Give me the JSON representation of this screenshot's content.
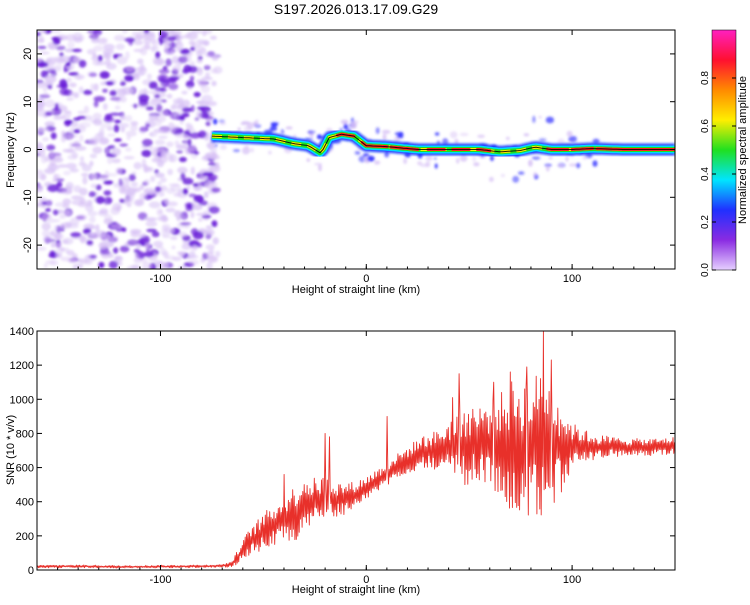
{
  "title": "S197.2026.013.17.09.G29",
  "colors": {
    "axis": "#000000",
    "snr_line": "#e8302a",
    "ridge": "#ff2020",
    "ridge_halo_green": "#20e020",
    "ridge_halo_blue": "#1030ff",
    "noise_light": "#d7c1f5",
    "noise_dark": "#6a1fd8",
    "background": "#ffffff"
  },
  "chart_data": [
    {
      "type": "heatmap",
      "title": "S197.2026.013.17.09.G29",
      "xlabel": "Height of straight line (km)",
      "ylabel": "Frequency (Hz)",
      "xlim": [
        -160,
        150
      ],
      "ylim": [
        -25,
        25
      ],
      "xticks": [
        -100,
        0,
        100
      ],
      "yticks": [
        -20,
        -10,
        0,
        10,
        20
      ],
      "noise_region_x": [
        -160,
        -75
      ],
      "ridge_x": [
        -75,
        -60,
        -45,
        -35,
        -28,
        -22,
        -18,
        -12,
        -6,
        0,
        10,
        25,
        40,
        55,
        65,
        75,
        82,
        90,
        100,
        110,
        125,
        150
      ],
      "ridge_freq": [
        2.8,
        2.5,
        2.2,
        1.2,
        0.8,
        -0.8,
        2.5,
        3.2,
        2.8,
        0.8,
        0.6,
        0.0,
        0.0,
        0.0,
        -0.5,
        -0.2,
        0.5,
        0.0,
        0.0,
        0.2,
        0.0,
        0.0
      ],
      "colorbar": {
        "label": "Normalized spectral amplitude",
        "range": [
          0.0,
          1.0
        ],
        "ticks": [
          0.0,
          0.2,
          0.4,
          0.6,
          0.8
        ],
        "tick_labels": [
          "0.0",
          "0.2",
          "0.4",
          "0.6",
          "0.8"
        ],
        "colors": [
          "#e6d0ff",
          "#8a2be2",
          "#2030ff",
          "#00e5ff",
          "#20e020",
          "#ffee00",
          "#ff8a00",
          "#ff1030",
          "#ff20c0"
        ]
      }
    },
    {
      "type": "line",
      "xlabel": "Height of straight line (km)",
      "ylabel": "SNR (10 * v/v)",
      "xlim": [
        -160,
        150
      ],
      "ylim": [
        0,
        1400
      ],
      "xticks": [
        -100,
        0,
        100
      ],
      "yticks": [
        0,
        200,
        400,
        600,
        800,
        1000,
        1200,
        1400
      ],
      "series": [
        {
          "name": "SNR",
          "x": [
            -160,
            -140,
            -120,
            -100,
            -80,
            -70,
            -65,
            -60,
            -55,
            -50,
            -45,
            -40,
            -35,
            -30,
            -25,
            -20,
            -15,
            -10,
            -5,
            0,
            5,
            10,
            15,
            20,
            25,
            30,
            35,
            40,
            45,
            50,
            55,
            60,
            65,
            70,
            75,
            80,
            85,
            90,
            95,
            100,
            110,
            120,
            130,
            140,
            150
          ],
          "values": [
            20,
            22,
            18,
            20,
            22,
            25,
            35,
            120,
            180,
            220,
            260,
            300,
            330,
            370,
            400,
            420,
            410,
            420,
            440,
            480,
            520,
            560,
            610,
            640,
            680,
            700,
            700,
            720,
            720,
            730,
            740,
            740,
            730,
            730,
            720,
            720,
            740,
            720,
            720,
            730,
            720,
            720,
            720,
            720,
            730
          ],
          "spread": [
            8,
            8,
            8,
            8,
            8,
            8,
            20,
            60,
            90,
            110,
            130,
            140,
            160,
            170,
            140,
            130,
            110,
            90,
            80,
            70,
            70,
            70,
            70,
            80,
            90,
            100,
            120,
            160,
            220,
            250,
            230,
            250,
            300,
            380,
            420,
            400,
            440,
            380,
            260,
            130,
            80,
            60,
            50,
            50,
            50
          ],
          "spikes": [
            [
              -40,
              560
            ],
            [
              -20,
              800
            ],
            [
              -18,
              780
            ],
            [
              42,
              1010
            ],
            [
              45,
              1150
            ],
            [
              62,
              1100
            ],
            [
              70,
              1160
            ],
            [
              78,
              1190
            ],
            [
              86,
              1400
            ],
            [
              90,
              1230
            ],
            [
              -30,
              500
            ],
            [
              10,
              900
            ]
          ]
        }
      ]
    }
  ]
}
